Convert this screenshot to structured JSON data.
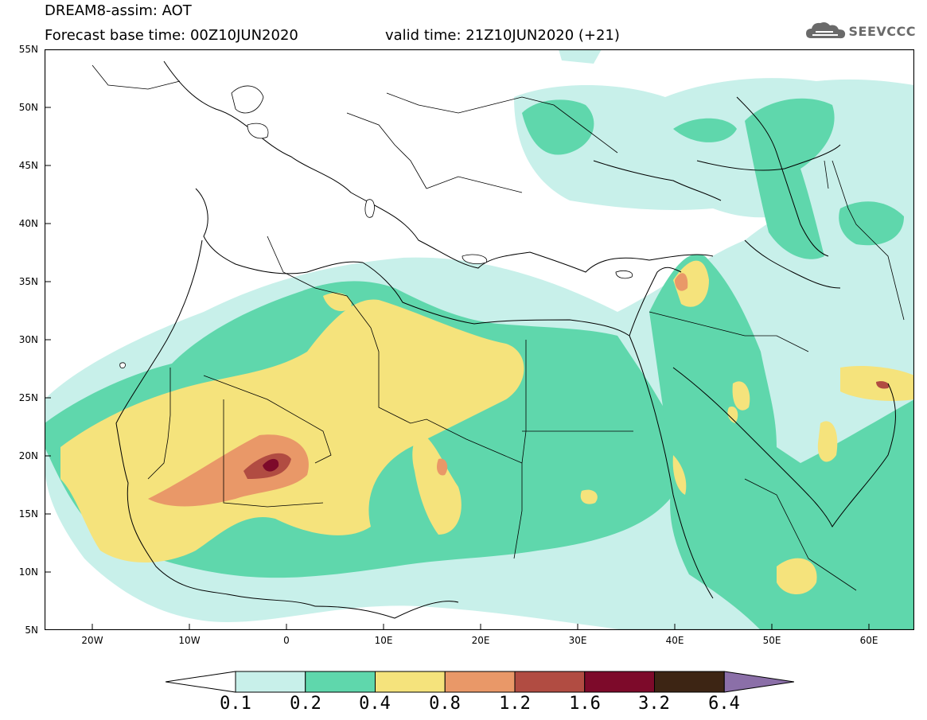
{
  "title_line1": "DREAM8-assim: AOT",
  "title_base": "Forecast base time: 00Z10JUN2020",
  "title_valid": "valid time: 21Z10JUN2020 (+21)",
  "logo_text": "SEEVCCC",
  "lat_ticks": [
    "55N",
    "50N",
    "45N",
    "40N",
    "35N",
    "30N",
    "25N",
    "20N",
    "15N",
    "10N",
    "5N"
  ],
  "lon_ticks": [
    "20W",
    "10W",
    "0",
    "10E",
    "20E",
    "30E",
    "40E",
    "50E",
    "60E"
  ],
  "colorbar": {
    "labels": [
      "0.1",
      "0.2",
      "0.4",
      "0.8",
      "1.2",
      "1.6",
      "3.2",
      "6.4"
    ],
    "colors": [
      "#c8f0ea",
      "#5fd7ac",
      "#f5e37c",
      "#e99868",
      "#b14c42",
      "#7d0a2a",
      "#3d2514",
      "#8b6fa8"
    ]
  }
}
